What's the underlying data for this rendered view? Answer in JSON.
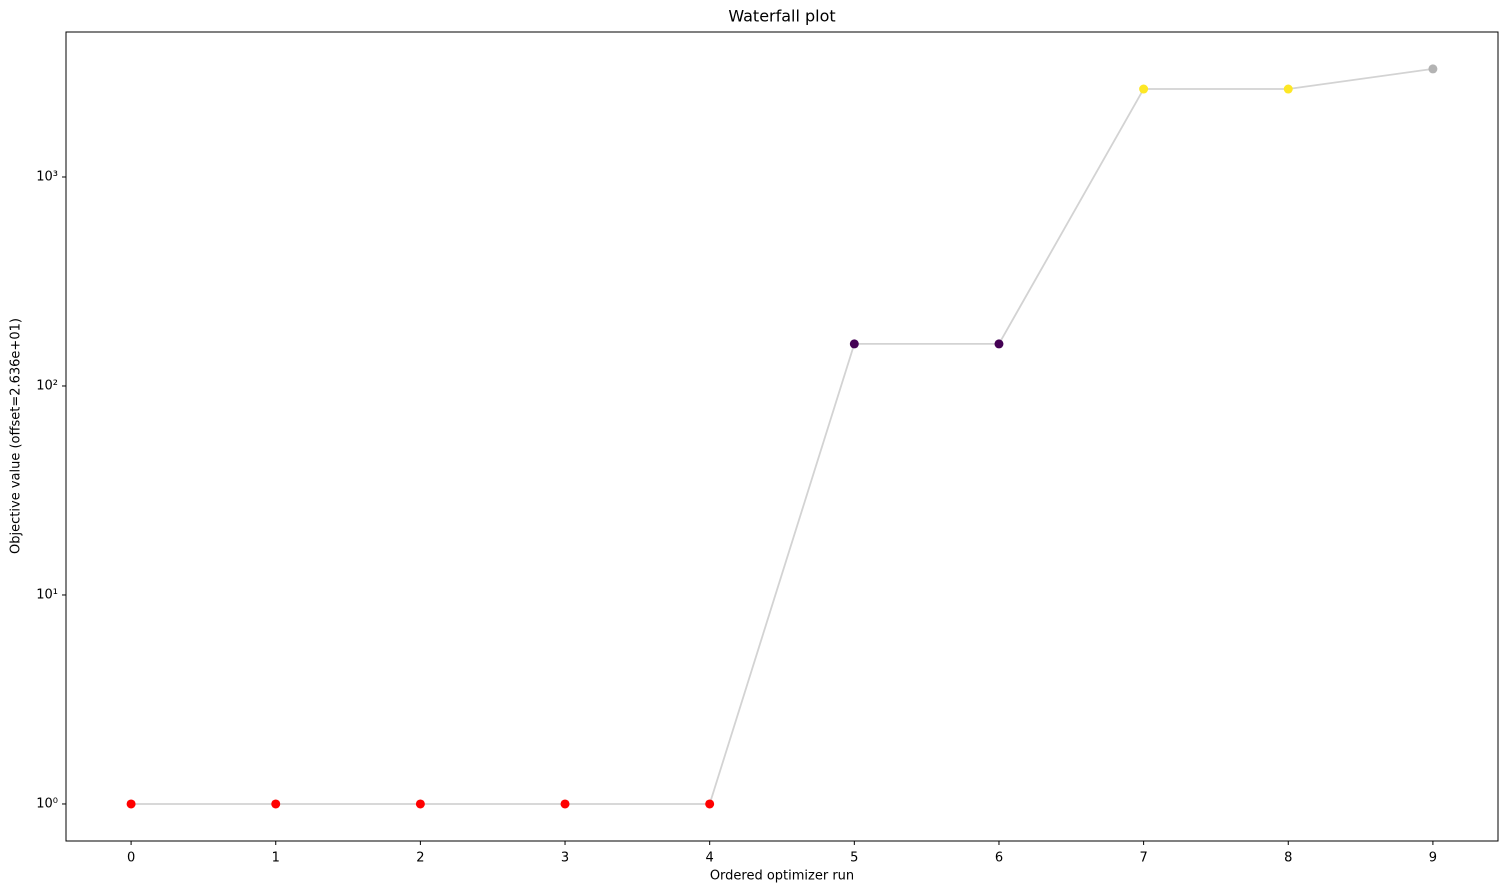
{
  "chart_data": {
    "type": "line",
    "title": "Waterfall plot",
    "x_label": "Ordered optimizer run",
    "y_label": "Objective value (offset=2.636e+01)",
    "x": [
      0,
      1,
      2,
      3,
      4,
      5,
      6,
      7,
      8,
      9
    ],
    "series": [
      {
        "color": "#d3d3d3",
        "values": [
          1,
          1,
          1,
          1,
          1,
          159,
          159,
          2636,
          2636,
          3290
        ],
        "point_colors": [
          "#ff0000",
          "#ff0000",
          "#ff0000",
          "#ff0000",
          "#ff0000",
          "#440154",
          "#440154",
          "#fde725",
          "#fde725",
          "#b3b3b3"
        ]
      }
    ],
    "xlim": [
      -0.45,
      9.45
    ],
    "xticks": [
      0,
      1,
      2,
      3,
      4,
      5,
      6,
      7,
      8,
      9
    ],
    "ylim": [
      0.665,
      4940
    ],
    "y_scale": "log",
    "yticks": [
      {
        "value": 1,
        "label": "10⁰"
      },
      {
        "value": 10,
        "label": "10¹"
      },
      {
        "value": 100,
        "label": "10²"
      },
      {
        "value": 1000,
        "label": "10³"
      }
    ],
    "grid": false
  }
}
